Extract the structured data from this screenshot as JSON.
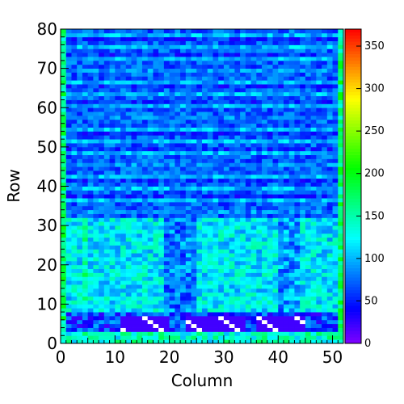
{
  "chart_data": {
    "type": "heatmap",
    "title": "",
    "xlabel": "Column",
    "ylabel": "Row",
    "xlim": [
      0,
      52
    ],
    "ylim": [
      0,
      80
    ],
    "x_ticks": [
      0,
      10,
      20,
      30,
      40,
      50
    ],
    "y_ticks": [
      0,
      10,
      20,
      30,
      40,
      50,
      60,
      70,
      80
    ],
    "colorbar": {
      "min": 0,
      "max": 370,
      "ticks": [
        0,
        50,
        100,
        150,
        200,
        250,
        300,
        350
      ],
      "palette": "rainbow (violet-blue-cyan-green-yellow-red)"
    },
    "description_of_values": {
      "row_band_0_2": 140,
      "row_band_3_7_bulk": 60,
      "row_band_3_7_dead_regions": 0,
      "rows_8_31_mean": 120,
      "rows_32_80_mean": 70,
      "edge_column_values": 170
    }
  }
}
